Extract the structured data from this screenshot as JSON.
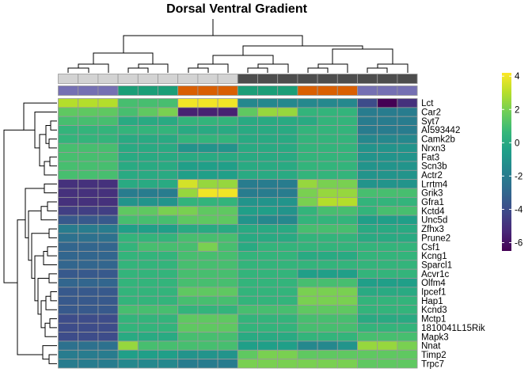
{
  "chart_data": {
    "type": "heatmap",
    "title": "Dorsal Ventral Gradient",
    "columns": 18,
    "rows": [
      "Lct",
      "Car2",
      "Syt7",
      "AI593442",
      "Camk2b",
      "Nrxn3",
      "Fat3",
      "Scn3b",
      "Actr2",
      "Lrrtm4",
      "Grik3",
      "Gfra1",
      "Kctd4",
      "Unc5d",
      "Zfhx3",
      "Prune2",
      "Csf1",
      "Kcng1",
      "Sparcl1",
      "Acvr1c",
      "Olfm4",
      "Ipcef1",
      "Hap1",
      "Kcnd3",
      "Mctp1",
      "1810041L15Rik",
      "Mapk3",
      "Nnat",
      "Timp2",
      "Trpc7"
    ],
    "values": [
      [
        3.0,
        3.0,
        3.0,
        1.0,
        1.0,
        1.0,
        4.0,
        4.0,
        4.0,
        -1.5,
        -1.5,
        -1.5,
        -1.5,
        -1.5,
        -1.5,
        -4.0,
        -6.5,
        -5.0
      ],
      [
        1.5,
        1.5,
        1.5,
        1.0,
        1.5,
        2.0,
        -5.5,
        -5.5,
        -5.5,
        1.5,
        2.5,
        2.5,
        0.5,
        0.5,
        0.5,
        -2.0,
        -2.0,
        -2.0
      ],
      [
        1.0,
        1.0,
        1.0,
        0.0,
        0.0,
        0.0,
        0.5,
        0.5,
        0.5,
        0.0,
        0.0,
        0.0,
        0.0,
        0.5,
        0.5,
        -2.0,
        -2.0,
        -2.0
      ],
      [
        0.5,
        0.5,
        0.5,
        0.5,
        0.5,
        0.5,
        0.0,
        0.0,
        0.0,
        0.0,
        0.0,
        0.0,
        0.5,
        0.5,
        0.5,
        -2.0,
        -2.0,
        -2.0
      ],
      [
        0.5,
        0.5,
        0.5,
        0.0,
        0.0,
        0.0,
        0.5,
        0.5,
        0.5,
        0.0,
        0.0,
        0.0,
        0.5,
        0.5,
        0.5,
        -1.5,
        -1.5,
        -1.5
      ],
      [
        1.0,
        1.0,
        1.0,
        0.0,
        0.0,
        0.0,
        -1.0,
        -1.0,
        -1.0,
        0.0,
        0.0,
        0.0,
        0.5,
        0.5,
        0.5,
        -1.0,
        -1.0,
        -1.0
      ],
      [
        1.0,
        1.0,
        1.0,
        0.0,
        0.0,
        0.0,
        0.0,
        0.0,
        0.0,
        0.0,
        0.0,
        0.0,
        0.5,
        0.5,
        0.5,
        -1.0,
        -1.0,
        -1.0
      ],
      [
        1.0,
        1.0,
        1.0,
        0.0,
        0.0,
        0.0,
        -0.5,
        -0.5,
        -0.5,
        0.0,
        0.0,
        0.0,
        0.5,
        0.5,
        0.5,
        -1.0,
        -1.0,
        -1.0
      ],
      [
        1.0,
        1.0,
        1.0,
        0.0,
        0.0,
        0.0,
        -0.5,
        -0.5,
        -0.5,
        0.0,
        0.0,
        0.0,
        0.5,
        0.5,
        0.5,
        -1.0,
        -1.0,
        -1.0
      ],
      [
        -5.0,
        -5.0,
        -5.0,
        0.0,
        0.0,
        0.0,
        3.5,
        2.5,
        2.5,
        -2.0,
        -2.0,
        -2.0,
        2.5,
        2.0,
        2.0,
        -1.0,
        -1.0,
        -1.0
      ],
      [
        -5.0,
        -5.0,
        -5.0,
        -2.0,
        -2.0,
        -2.0,
        2.5,
        4.0,
        4.0,
        -2.0,
        -2.0,
        -2.0,
        2.0,
        2.5,
        2.5,
        1.0,
        1.0,
        1.0
      ],
      [
        -5.0,
        -5.0,
        -5.0,
        -1.0,
        -1.0,
        -1.0,
        0.5,
        0.5,
        0.5,
        -1.0,
        -1.0,
        -1.0,
        2.0,
        3.0,
        3.0,
        0.5,
        0.5,
        0.5
      ],
      [
        -4.5,
        -4.5,
        -4.5,
        1.5,
        1.5,
        2.0,
        2.0,
        1.5,
        1.5,
        -0.5,
        -0.5,
        -1.0,
        0.5,
        1.0,
        1.0,
        0.5,
        1.0,
        1.0
      ],
      [
        -3.5,
        -3.5,
        -3.5,
        1.0,
        1.0,
        1.0,
        1.5,
        1.5,
        1.5,
        -1.0,
        -1.5,
        -1.5,
        0.5,
        0.5,
        0.5,
        -0.5,
        -0.5,
        -0.5
      ],
      [
        -2.0,
        -2.0,
        -2.0,
        -0.5,
        -0.5,
        -0.5,
        0.0,
        0.0,
        0.0,
        0.0,
        0.0,
        0.0,
        1.0,
        1.0,
        1.0,
        0.0,
        0.0,
        0.0
      ],
      [
        -2.5,
        -2.5,
        -2.5,
        0.5,
        0.5,
        0.5,
        1.0,
        1.0,
        1.0,
        0.0,
        0.0,
        0.0,
        0.5,
        0.5,
        0.5,
        0.0,
        0.0,
        0.0
      ],
      [
        -3.0,
        -3.0,
        -3.0,
        0.5,
        1.0,
        1.0,
        1.0,
        2.0,
        1.0,
        0.0,
        0.5,
        0.5,
        0.5,
        0.5,
        0.5,
        0.5,
        0.5,
        0.5
      ],
      [
        -3.0,
        -3.0,
        -3.0,
        0.5,
        0.5,
        0.5,
        1.0,
        1.0,
        1.0,
        0.5,
        0.5,
        0.5,
        0.0,
        0.0,
        0.0,
        0.5,
        0.5,
        0.5
      ],
      [
        -3.0,
        -3.0,
        -3.0,
        0.5,
        0.5,
        0.5,
        1.0,
        1.0,
        1.0,
        0.5,
        0.5,
        0.5,
        0.5,
        0.5,
        0.5,
        0.5,
        0.5,
        0.5
      ],
      [
        -3.5,
        -3.5,
        -3.5,
        0.5,
        0.5,
        0.5,
        1.0,
        1.0,
        1.0,
        0.5,
        0.5,
        0.5,
        -0.5,
        -0.5,
        -0.5,
        0.5,
        0.5,
        0.5
      ],
      [
        -3.0,
        -3.0,
        -3.0,
        0.5,
        0.5,
        0.5,
        1.0,
        1.0,
        1.0,
        0.5,
        0.5,
        0.5,
        1.0,
        1.0,
        1.0,
        -0.5,
        -0.5,
        -0.5
      ],
      [
        -3.5,
        -3.5,
        -3.5,
        0.5,
        0.5,
        0.5,
        1.5,
        1.5,
        1.5,
        0.5,
        0.5,
        0.5,
        2.0,
        2.0,
        2.0,
        0.0,
        0.0,
        0.0
      ],
      [
        -3.5,
        -3.5,
        -3.5,
        0.5,
        0.5,
        0.5,
        1.0,
        1.0,
        1.0,
        0.5,
        0.5,
        0.5,
        2.0,
        2.0,
        2.0,
        0.5,
        0.5,
        0.5
      ],
      [
        -3.5,
        -3.5,
        -3.5,
        1.0,
        1.0,
        1.0,
        0.5,
        0.5,
        0.5,
        1.0,
        1.0,
        1.0,
        1.5,
        1.5,
        1.5,
        0.5,
        0.5,
        0.5
      ],
      [
        -4.0,
        -4.0,
        -4.0,
        0.5,
        0.5,
        0.5,
        1.5,
        1.5,
        1.5,
        0.5,
        0.5,
        0.5,
        1.0,
        1.0,
        1.0,
        0.0,
        0.0,
        0.0
      ],
      [
        -4.0,
        -4.0,
        -4.0,
        0.5,
        0.5,
        0.5,
        1.5,
        1.5,
        1.5,
        0.5,
        0.5,
        0.5,
        1.0,
        1.0,
        1.0,
        0.5,
        0.5,
        0.5
      ],
      [
        -4.0,
        -4.0,
        -4.0,
        0.0,
        0.0,
        0.0,
        1.0,
        1.0,
        1.0,
        0.0,
        0.0,
        0.0,
        0.5,
        0.5,
        0.5,
        1.0,
        1.0,
        1.0
      ],
      [
        -2.5,
        -2.5,
        -2.5,
        2.5,
        1.0,
        1.0,
        1.0,
        1.0,
        1.0,
        -0.5,
        -0.5,
        -0.5,
        -1.5,
        -1.5,
        -1.0,
        2.5,
        2.5,
        2.0
      ],
      [
        -2.0,
        -2.0,
        -2.0,
        -0.5,
        -0.5,
        -0.5,
        -1.0,
        -1.0,
        -1.0,
        1.5,
        2.0,
        2.0,
        1.5,
        1.5,
        1.5,
        1.5,
        1.5,
        1.5
      ],
      [
        -2.0,
        -2.0,
        -2.0,
        -1.5,
        -1.5,
        -1.5,
        -2.0,
        -2.0,
        -2.0,
        2.0,
        2.0,
        2.0,
        2.0,
        2.0,
        2.0,
        1.5,
        1.5,
        1.5
      ]
    ],
    "color_scale": {
      "range": [
        -6.5,
        4.2
      ],
      "ticks": [
        4,
        2,
        0,
        -2,
        -4,
        -6
      ],
      "colors": [
        "#440154",
        "#482878",
        "#3e4989",
        "#31688e",
        "#26828e",
        "#1f9e89",
        "#35b779",
        "#6ece58",
        "#b5de2b",
        "#fde725"
      ]
    },
    "annotation_rows": [
      [
        "#d3d3d3",
        "#d3d3d3",
        "#d3d3d3",
        "#d3d3d3",
        "#d3d3d3",
        "#d3d3d3",
        "#d3d3d3",
        "#d3d3d3",
        "#d3d3d3",
        "#4d4d4d",
        "#4d4d4d",
        "#4d4d4d",
        "#4d4d4d",
        "#4d4d4d",
        "#4d4d4d",
        "#4d4d4d",
        "#4d4d4d",
        "#4d4d4d"
      ],
      [
        "#7570b3",
        "#7570b3",
        "#7570b3",
        "#1b9e77",
        "#1b9e77",
        "#1b9e77",
        "#d95f02",
        "#d95f02",
        "#d95f02",
        "#1b9e77",
        "#1b9e77",
        "#1b9e77",
        "#d95f02",
        "#d95f02",
        "#d95f02",
        "#7570b3",
        "#7570b3",
        "#7570b3"
      ]
    ],
    "cell_border_color": "#9a9a9a",
    "grid": true
  }
}
